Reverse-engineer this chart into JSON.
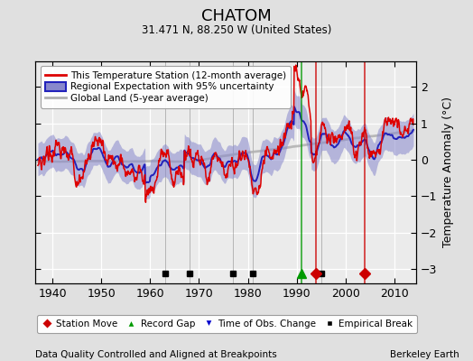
{
  "title": "CHATOM",
  "subtitle": "31.471 N, 88.250 W (United States)",
  "xlabel_bottom": "Data Quality Controlled and Aligned at Breakpoints",
  "xlabel_right": "Berkeley Earth",
  "ylabel": "Temperature Anomaly (°C)",
  "xlim": [
    1936.5,
    2014.5
  ],
  "ylim": [
    -3.4,
    2.7
  ],
  "yticks": [
    -3,
    -2,
    -1,
    0,
    1,
    2
  ],
  "xticks": [
    1940,
    1950,
    1960,
    1970,
    1980,
    1990,
    2000,
    2010
  ],
  "bg_color": "#e0e0e0",
  "plot_bg_color": "#ebebeb",
  "grid_color": "#ffffff",
  "station_color": "#dd0000",
  "regional_color": "#2222bb",
  "regional_fill_color": "#8888cc",
  "global_color": "#b0b0b0",
  "legend_labels": [
    "This Temperature Station (12-month average)",
    "Regional Expectation with 95% uncertainty",
    "Global Land (5-year average)"
  ],
  "marker_station_move_years": [
    1994,
    2004
  ],
  "marker_record_gap_years": [
    1991
  ],
  "marker_time_obs_years": [],
  "marker_empirical_break_years": [
    1963,
    1968,
    1977,
    1981,
    1995
  ],
  "seed": 42
}
